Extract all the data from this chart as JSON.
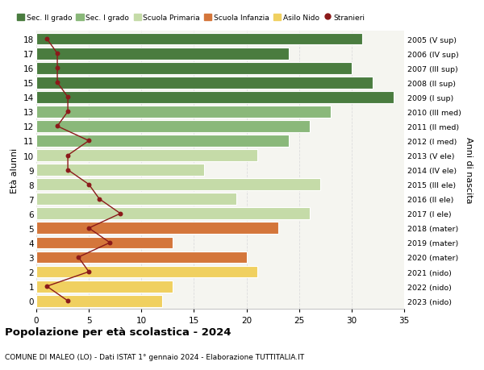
{
  "ages": [
    18,
    17,
    16,
    15,
    14,
    13,
    12,
    11,
    10,
    9,
    8,
    7,
    6,
    5,
    4,
    3,
    2,
    1,
    0
  ],
  "years": [
    "2005 (V sup)",
    "2006 (IV sup)",
    "2007 (III sup)",
    "2008 (II sup)",
    "2009 (I sup)",
    "2010 (III med)",
    "2011 (II med)",
    "2012 (I med)",
    "2013 (V ele)",
    "2014 (IV ele)",
    "2015 (III ele)",
    "2016 (II ele)",
    "2017 (I ele)",
    "2018 (mater)",
    "2019 (mater)",
    "2020 (mater)",
    "2021 (nido)",
    "2022 (nido)",
    "2023 (nido)"
  ],
  "bar_values": [
    31,
    24,
    30,
    32,
    34,
    28,
    26,
    24,
    21,
    16,
    27,
    19,
    26,
    23,
    13,
    20,
    21,
    13,
    12
  ],
  "bar_colors": [
    "#4a7c3f",
    "#4a7c3f",
    "#4a7c3f",
    "#4a7c3f",
    "#4a7c3f",
    "#8ab87a",
    "#8ab87a",
    "#8ab87a",
    "#c5dba8",
    "#c5dba8",
    "#c5dba8",
    "#c5dba8",
    "#c5dba8",
    "#d4763b",
    "#d4763b",
    "#d4763b",
    "#f0d060",
    "#f0d060",
    "#f0d060"
  ],
  "stranieri": [
    1,
    2,
    2,
    2,
    3,
    3,
    2,
    5,
    3,
    3,
    5,
    6,
    8,
    5,
    7,
    4,
    5,
    1,
    3
  ],
  "stranieri_color": "#8b1a1a",
  "title": "Popolazione per età scolastica - 2024",
  "subtitle": "COMUNE DI MALEO (LO) - Dati ISTAT 1° gennaio 2024 - Elaborazione TUTTITALIA.IT",
  "ylabel": "Età alunni",
  "ylabel2": "Anni di nascita",
  "xlim": [
    0,
    35
  ],
  "xticks": [
    0,
    5,
    10,
    15,
    20,
    25,
    30,
    35
  ],
  "legend_labels": [
    "Sec. II grado",
    "Sec. I grado",
    "Scuola Primaria",
    "Scuola Infanzia",
    "Asilo Nido",
    "Stranieri"
  ],
  "legend_colors": [
    "#4a7c3f",
    "#8ab87a",
    "#c5dba8",
    "#d4763b",
    "#f0d060",
    "#8b1a1a"
  ],
  "bg_color": "#ffffff",
  "plot_bg": "#f5f5f0",
  "grid_color": "#dddddd"
}
